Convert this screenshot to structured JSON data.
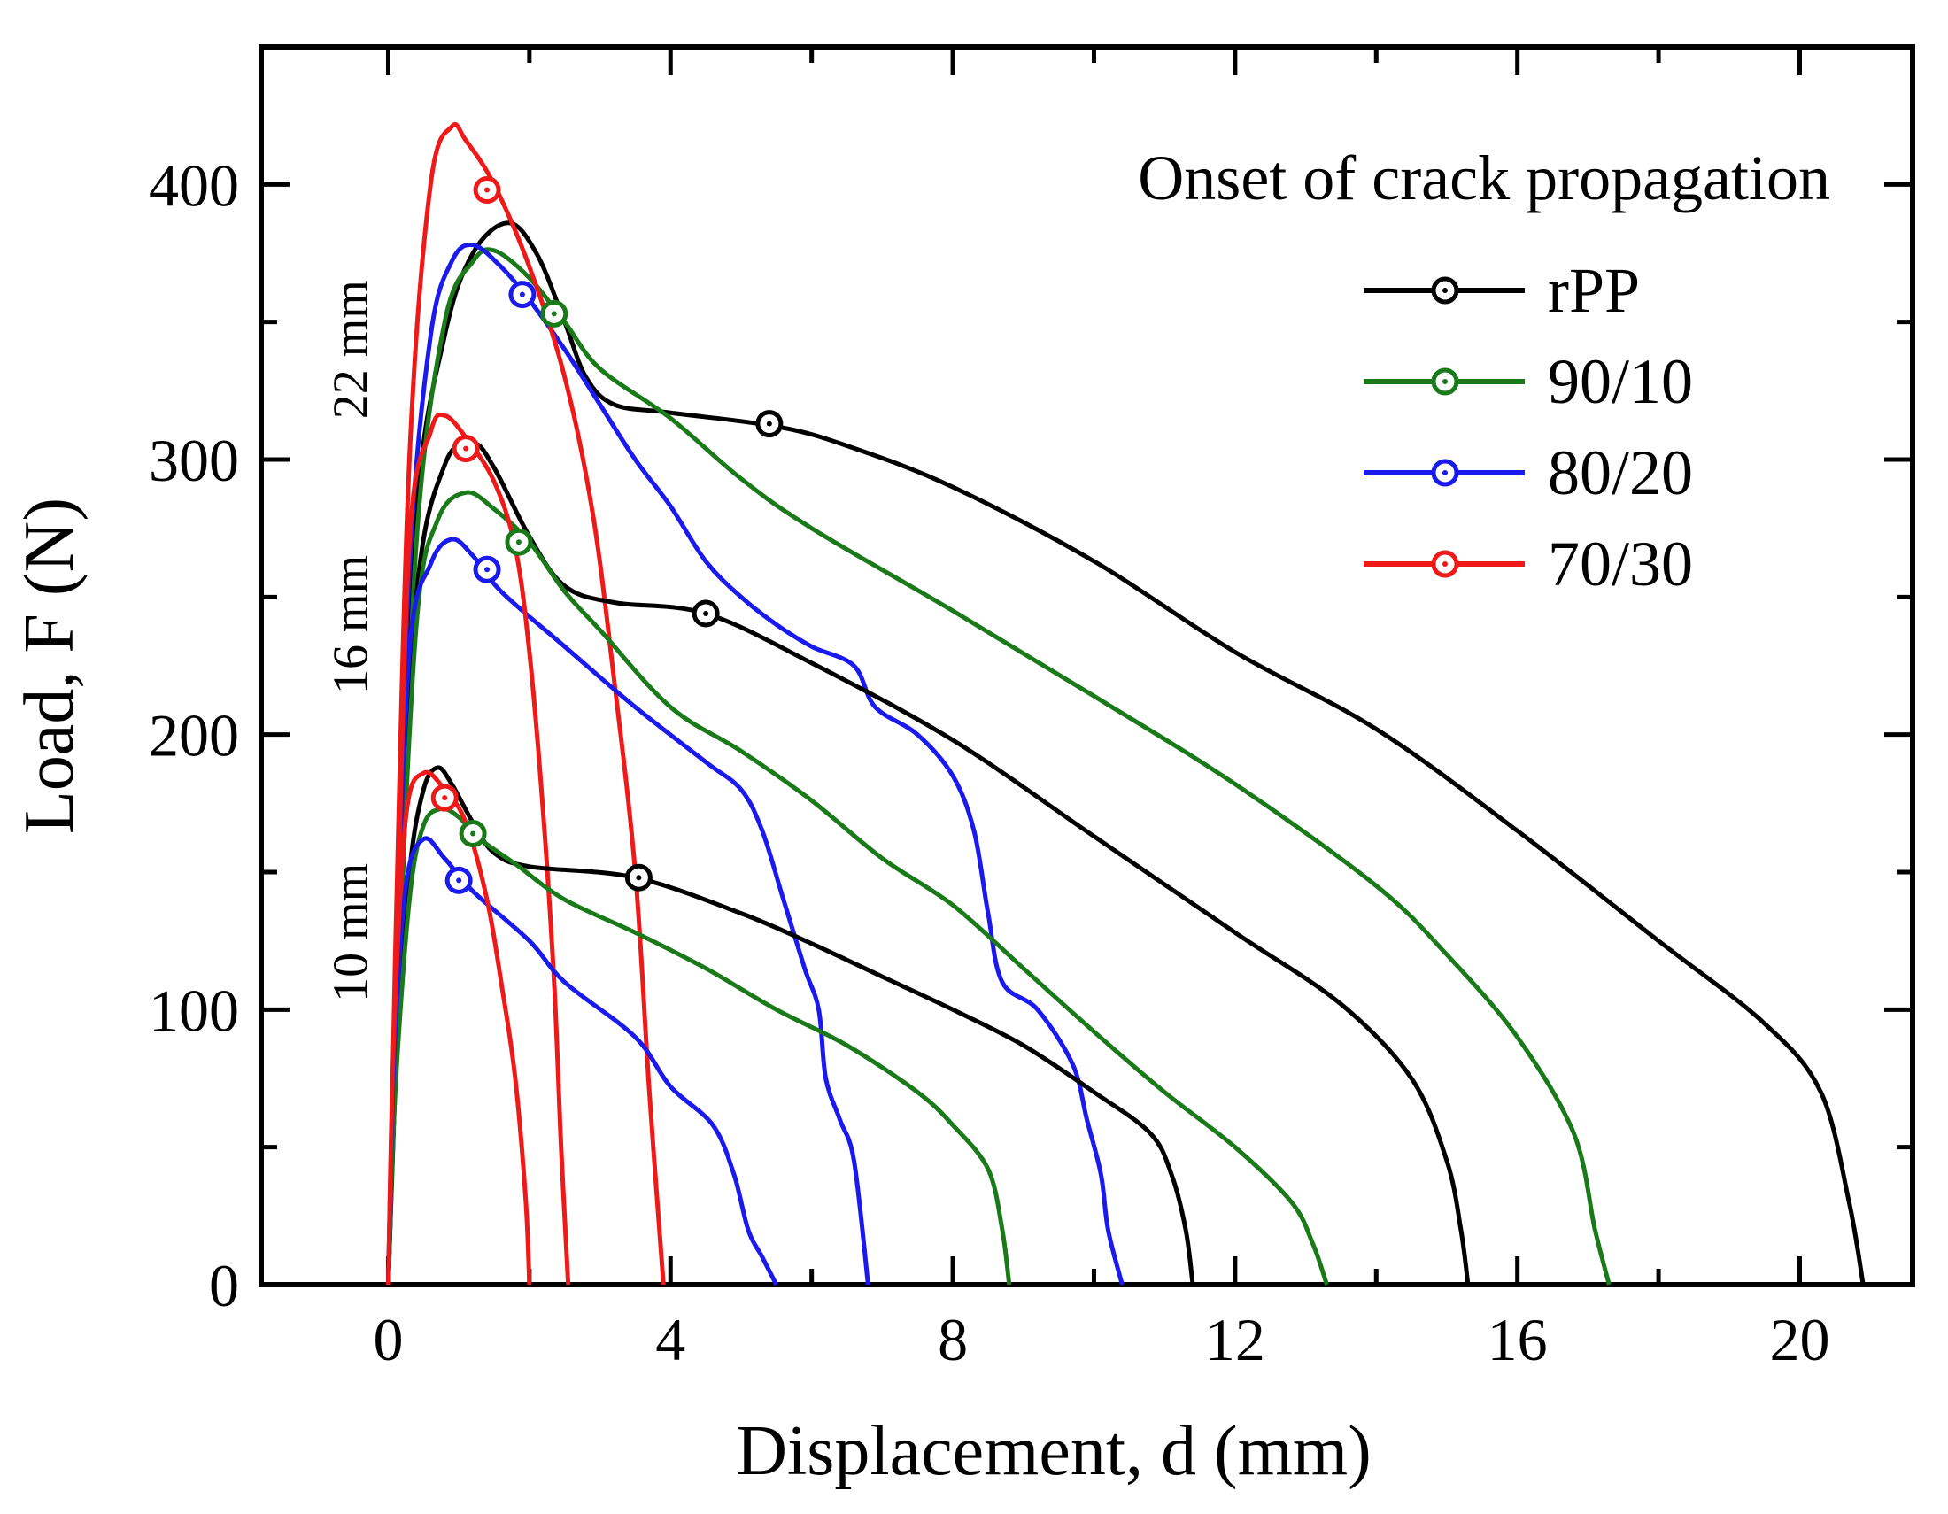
{
  "chart_data": {
    "type": "line",
    "title": "Onset of crack propagation",
    "xlabel": "Displacement, d (mm)",
    "ylabel": "Load, F (N)",
    "xlim": [
      -1.8,
      21.6
    ],
    "ylim": [
      0,
      450
    ],
    "xticks": [
      0,
      4,
      8,
      12,
      16,
      20
    ],
    "yticks": [
      0,
      100,
      200,
      300,
      400
    ],
    "xtick_labels": [
      "0",
      "4",
      "8",
      "12",
      "16",
      "20"
    ],
    "ytick_labels": [
      "0",
      "100",
      "200",
      "300",
      "400"
    ],
    "legend_position": "top-right",
    "colors": {
      "rPP": "#000000",
      "90/10": "#1a7a1a",
      "80/20": "#1a1aee",
      "70/30": "#ee1a1a"
    },
    "specimen_labels": [
      {
        "text": "22 mm",
        "x": -0.3,
        "y": 340
      },
      {
        "text": "16 mm",
        "x": -0.3,
        "y": 240
      },
      {
        "text": "10 mm",
        "x": -0.3,
        "y": 128
      }
    ],
    "series": [
      {
        "name": "rPP",
        "group": "22 mm",
        "color": "#000000",
        "points": [
          [
            0,
            0
          ],
          [
            0.15,
            120
          ],
          [
            0.4,
            280
          ],
          [
            0.8,
            345
          ],
          [
            1.2,
            375
          ],
          [
            1.7,
            386
          ],
          [
            2.1,
            375
          ],
          [
            2.5,
            350
          ],
          [
            2.8,
            330
          ],
          [
            3.2,
            320
          ],
          [
            4,
            317
          ],
          [
            5.5,
            312
          ],
          [
            6.5,
            305
          ],
          [
            8,
            290
          ],
          [
            10,
            263
          ],
          [
            12,
            230
          ],
          [
            14,
            202
          ],
          [
            16,
            165
          ],
          [
            18,
            125
          ],
          [
            19.5,
            95
          ],
          [
            20.3,
            70
          ],
          [
            20.7,
            30
          ],
          [
            20.9,
            0
          ]
        ],
        "onset": [
          5.4,
          313
        ]
      },
      {
        "name": "90/10",
        "group": "22 mm",
        "color": "#1a7a1a",
        "points": [
          [
            0,
            0
          ],
          [
            0.15,
            110
          ],
          [
            0.4,
            270
          ],
          [
            0.8,
            350
          ],
          [
            1.2,
            372
          ],
          [
            1.5,
            376
          ],
          [
            2,
            366
          ],
          [
            2.5,
            350
          ],
          [
            3,
            333
          ],
          [
            4,
            315
          ],
          [
            5,
            293
          ],
          [
            6,
            275
          ],
          [
            8,
            245
          ],
          [
            10,
            214
          ],
          [
            12,
            182
          ],
          [
            14,
            145
          ],
          [
            15,
            120
          ],
          [
            16,
            90
          ],
          [
            16.8,
            55
          ],
          [
            17.1,
            20
          ],
          [
            17.3,
            0
          ]
        ],
        "onset": [
          2.35,
          353
        ]
      },
      {
        "name": "80/20",
        "group": "22 mm",
        "color": "#1a1aee",
        "points": [
          [
            0,
            0
          ],
          [
            0.1,
            100
          ],
          [
            0.3,
            260
          ],
          [
            0.6,
            345
          ],
          [
            0.9,
            372
          ],
          [
            1.2,
            378
          ],
          [
            1.6,
            370
          ],
          [
            2,
            358
          ],
          [
            2.5,
            340
          ],
          [
            3,
            320
          ],
          [
            3.5,
            300
          ],
          [
            4,
            283
          ],
          [
            4.5,
            263
          ],
          [
            5,
            250
          ],
          [
            5.5,
            240
          ],
          [
            6,
            232
          ],
          [
            6.6,
            225
          ],
          [
            6.9,
            210
          ],
          [
            7.5,
            200
          ],
          [
            8,
            185
          ],
          [
            8.3,
            165
          ],
          [
            8.5,
            135
          ],
          [
            8.7,
            110
          ],
          [
            9.2,
            100
          ],
          [
            9.7,
            80
          ],
          [
            9.9,
            60
          ],
          [
            10.1,
            40
          ],
          [
            10.2,
            20
          ],
          [
            10.4,
            0
          ]
        ],
        "onset": [
          1.9,
          360
        ]
      },
      {
        "name": "70/30",
        "group": "22 mm",
        "color": "#ee1a1a",
        "points": [
          [
            0,
            0
          ],
          [
            0.1,
            120
          ],
          [
            0.3,
            300
          ],
          [
            0.6,
            400
          ],
          [
            0.9,
            421
          ],
          [
            1.1,
            416
          ],
          [
            1.5,
            400
          ],
          [
            2,
            370
          ],
          [
            2.5,
            330
          ],
          [
            2.9,
            280
          ],
          [
            3.2,
            220
          ],
          [
            3.5,
            150
          ],
          [
            3.7,
            70
          ],
          [
            3.9,
            0
          ]
        ],
        "onset": [
          1.4,
          398
        ]
      },
      {
        "name": "rPP",
        "group": "16 mm",
        "color": "#000000",
        "points": [
          [
            0,
            0
          ],
          [
            0.15,
            110
          ],
          [
            0.4,
            250
          ],
          [
            0.8,
            298
          ],
          [
            1.2,
            306
          ],
          [
            1.5,
            297
          ],
          [
            2,
            272
          ],
          [
            2.5,
            254
          ],
          [
            3.2,
            248
          ],
          [
            4.5,
            244
          ],
          [
            6,
            226
          ],
          [
            8,
            198
          ],
          [
            10,
            163
          ],
          [
            12,
            128
          ],
          [
            13.5,
            102
          ],
          [
            14.5,
            75
          ],
          [
            15,
            45
          ],
          [
            15.2,
            20
          ],
          [
            15.3,
            0
          ]
        ],
        "onset": [
          4.5,
          244
        ]
      },
      {
        "name": "90/10",
        "group": "16 mm",
        "color": "#1a7a1a",
        "points": [
          [
            0,
            0
          ],
          [
            0.12,
            100
          ],
          [
            0.4,
            240
          ],
          [
            0.7,
            278
          ],
          [
            1.1,
            288
          ],
          [
            1.5,
            282
          ],
          [
            2,
            270
          ],
          [
            2.5,
            252
          ],
          [
            3,
            238
          ],
          [
            4,
            210
          ],
          [
            5,
            194
          ],
          [
            6,
            176
          ],
          [
            7,
            155
          ],
          [
            8,
            138
          ],
          [
            9,
            115
          ],
          [
            10,
            92
          ],
          [
            11,
            70
          ],
          [
            12,
            50
          ],
          [
            12.8,
            30
          ],
          [
            13.1,
            15
          ],
          [
            13.3,
            0
          ]
        ],
        "onset": [
          1.85,
          270
        ]
      },
      {
        "name": "80/20",
        "group": "16 mm",
        "color": "#1a1aee",
        "points": [
          [
            0,
            0
          ],
          [
            0.1,
            100
          ],
          [
            0.3,
            230
          ],
          [
            0.6,
            262
          ],
          [
            0.9,
            271
          ],
          [
            1.2,
            265
          ],
          [
            1.6,
            252
          ],
          [
            2.5,
            232
          ],
          [
            3.5,
            210
          ],
          [
            4.5,
            190
          ],
          [
            5,
            180
          ],
          [
            5.3,
            165
          ],
          [
            5.6,
            140
          ],
          [
            5.9,
            115
          ],
          [
            6.1,
            100
          ],
          [
            6.2,
            75
          ],
          [
            6.4,
            60
          ],
          [
            6.6,
            45
          ],
          [
            6.8,
            0
          ]
        ],
        "onset": [
          1.4,
          260
        ]
      },
      {
        "name": "70/30",
        "group": "16 mm",
        "color": "#ee1a1a",
        "points": [
          [
            0,
            0
          ],
          [
            0.1,
            100
          ],
          [
            0.3,
            270
          ],
          [
            0.6,
            310
          ],
          [
            0.8,
            316
          ],
          [
            1.1,
            308
          ],
          [
            1.5,
            292
          ],
          [
            1.8,
            268
          ],
          [
            2,
            230
          ],
          [
            2.2,
            170
          ],
          [
            2.35,
            110
          ],
          [
            2.45,
            50
          ],
          [
            2.55,
            0
          ]
        ],
        "onset": [
          1.1,
          304
        ]
      },
      {
        "name": "rPP",
        "group": "10 mm",
        "color": "#000000",
        "points": [
          [
            0,
            0
          ],
          [
            0.1,
            80
          ],
          [
            0.3,
            150
          ],
          [
            0.5,
            180
          ],
          [
            0.7,
            188
          ],
          [
            0.9,
            182
          ],
          [
            1.2,
            168
          ],
          [
            1.5,
            157
          ],
          [
            2,
            152
          ],
          [
            3.5,
            148
          ],
          [
            5,
            135
          ],
          [
            6,
            124
          ],
          [
            7,
            112
          ],
          [
            8,
            100
          ],
          [
            9,
            87
          ],
          [
            10,
            70
          ],
          [
            10.8,
            55
          ],
          [
            11.1,
            40
          ],
          [
            11.3,
            20
          ],
          [
            11.4,
            0
          ]
        ],
        "onset": [
          3.55,
          148
        ]
      },
      {
        "name": "90/10",
        "group": "10 mm",
        "color": "#1a7a1a",
        "points": [
          [
            0,
            0
          ],
          [
            0.1,
            70
          ],
          [
            0.3,
            140
          ],
          [
            0.5,
            167
          ],
          [
            0.75,
            173
          ],
          [
            1,
            170
          ],
          [
            1.3,
            162
          ],
          [
            1.8,
            153
          ],
          [
            2.5,
            140
          ],
          [
            3.5,
            128
          ],
          [
            4.5,
            115
          ],
          [
            5.5,
            100
          ],
          [
            6.5,
            87
          ],
          [
            7.5,
            70
          ],
          [
            8,
            58
          ],
          [
            8.5,
            42
          ],
          [
            8.7,
            20
          ],
          [
            8.8,
            0
          ]
        ],
        "onset": [
          1.2,
          164
        ]
      },
      {
        "name": "80/20",
        "group": "10 mm",
        "color": "#1a1aee",
        "points": [
          [
            0,
            0
          ],
          [
            0.08,
            80
          ],
          [
            0.25,
            145
          ],
          [
            0.5,
            162
          ],
          [
            0.8,
            155
          ],
          [
            1.2,
            143
          ],
          [
            2,
            125
          ],
          [
            2.5,
            110
          ],
          [
            3.5,
            90
          ],
          [
            4,
            72
          ],
          [
            4.6,
            58
          ],
          [
            4.9,
            40
          ],
          [
            5.1,
            20
          ],
          [
            5.3,
            10
          ],
          [
            5.5,
            0
          ]
        ],
        "onset": [
          1.0,
          147
        ]
      },
      {
        "name": "70/30",
        "group": "10 mm",
        "color": "#ee1a1a",
        "points": [
          [
            0,
            0
          ],
          [
            0.08,
            90
          ],
          [
            0.25,
            170
          ],
          [
            0.5,
            186
          ],
          [
            0.8,
            180
          ],
          [
            1.1,
            168
          ],
          [
            1.4,
            140
          ],
          [
            1.6,
            110
          ],
          [
            1.8,
            75
          ],
          [
            1.95,
            30
          ],
          [
            2.0,
            0
          ]
        ],
        "onset": [
          0.8,
          177
        ]
      }
    ]
  }
}
